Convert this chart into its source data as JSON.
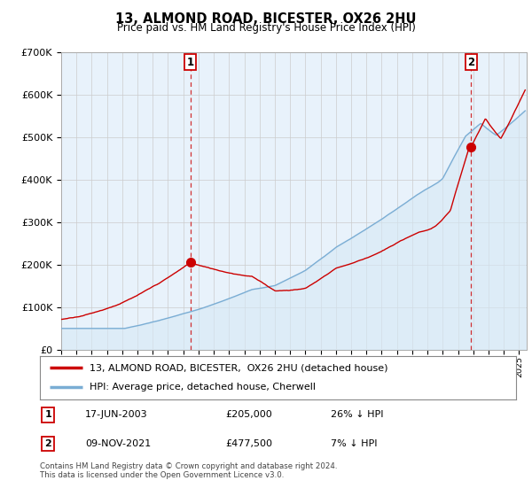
{
  "title": "13, ALMOND ROAD, BICESTER, OX26 2HU",
  "subtitle": "Price paid vs. HM Land Registry's House Price Index (HPI)",
  "ylim": [
    0,
    700000
  ],
  "yticks": [
    0,
    100000,
    200000,
    300000,
    400000,
    500000,
    600000,
    700000
  ],
  "ytick_labels": [
    "£0",
    "£100K",
    "£200K",
    "£300K",
    "£400K",
    "£500K",
    "£600K",
    "£700K"
  ],
  "xlim_start": 1995.0,
  "xlim_end": 2025.5,
  "sale1_x": 2003.46,
  "sale1_y": 205000,
  "sale1_label": "1",
  "sale1_date": "17-JUN-2003",
  "sale1_price": "£205,000",
  "sale1_hpi": "26% ↓ HPI",
  "sale2_x": 2021.86,
  "sale2_y": 477500,
  "sale2_label": "2",
  "sale2_date": "09-NOV-2021",
  "sale2_price": "£477,500",
  "sale2_hpi": "7% ↓ HPI",
  "line_color_red": "#cc0000",
  "line_color_blue": "#7aadd4",
  "fill_color_blue": "#d6e8f5",
  "vline_color": "#cc0000",
  "marker_color": "#cc0000",
  "legend_label1": "13, ALMOND ROAD, BICESTER,  OX26 2HU (detached house)",
  "legend_label2": "HPI: Average price, detached house, Cherwell",
  "footnote": "Contains HM Land Registry data © Crown copyright and database right 2024.\nThis data is licensed under the Open Government Licence v3.0.",
  "background_color": "#ffffff",
  "grid_color": "#cccccc"
}
